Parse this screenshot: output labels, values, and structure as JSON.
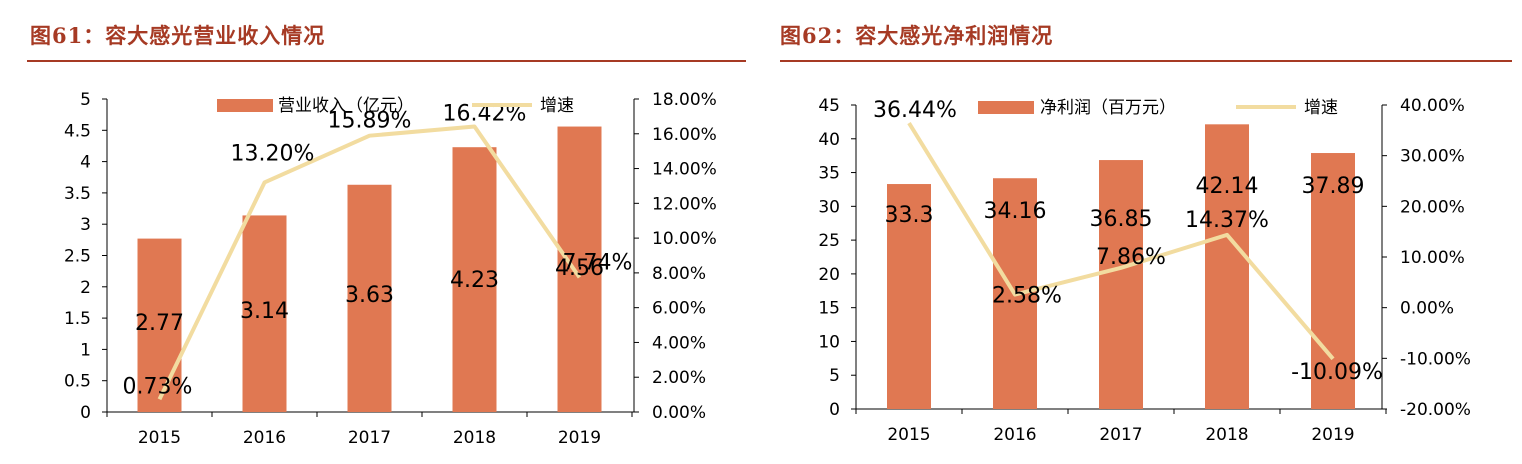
{
  "charts": [
    {
      "id": "revenue",
      "figure_title": "图61：容大感光营业收入情况",
      "bar_color": "#e07852",
      "line_color": "#f2dca0",
      "chart_data": {
        "type": "bar",
        "categories": [
          "2015",
          "2016",
          "2017",
          "2018",
          "2019"
        ],
        "series": [
          {
            "name": "营业收入（亿元）",
            "type": "bar",
            "axis": "left",
            "values": [
              2.77,
              3.14,
              3.63,
              4.23,
              4.56
            ],
            "labels": [
              "2.77",
              "3.14",
              "3.63",
              "4.23",
              "4.56"
            ]
          },
          {
            "name": "增速",
            "type": "line",
            "axis": "right",
            "values": [
              0.73,
              13.2,
              15.89,
              16.42,
              7.74
            ],
            "labels": [
              "0.73%",
              "13.20%",
              "15.89%",
              "16.42%",
              "7.74%"
            ]
          }
        ],
        "y_left": {
          "min": 0,
          "max": 5,
          "ticks": [
            "0",
            "0.5",
            "1",
            "1.5",
            "2",
            "2.5",
            "3",
            "3.5",
            "4",
            "4.5",
            "5"
          ]
        },
        "y_right": {
          "min": 0,
          "max": 18,
          "ticks": [
            "0.00%",
            "2.00%",
            "4.00%",
            "6.00%",
            "8.00%",
            "10.00%",
            "12.00%",
            "14.00%",
            "16.00%",
            "18.00%"
          ]
        },
        "legend_position": "top-center",
        "grid": false
      }
    },
    {
      "id": "profit",
      "figure_title": "图62：容大感光净利润情况",
      "bar_color": "#e07852",
      "line_color": "#f2dca0",
      "chart_data": {
        "type": "bar",
        "categories": [
          "2015",
          "2016",
          "2017",
          "2018",
          "2019"
        ],
        "series": [
          {
            "name": "净利润（百万元）",
            "type": "bar",
            "axis": "left",
            "values": [
              33.3,
              34.16,
              36.85,
              42.14,
              37.89
            ],
            "labels": [
              "33.3",
              "34.16",
              "36.85",
              "42.14",
              "37.89"
            ]
          },
          {
            "name": "增速",
            "type": "line",
            "axis": "right",
            "values": [
              36.44,
              2.58,
              7.86,
              14.37,
              -10.09
            ],
            "labels": [
              "36.44%",
              "2.58%",
              "7.86%",
              "14.37%",
              "-10.09%"
            ]
          }
        ],
        "y_left": {
          "min": 0,
          "max": 45,
          "ticks": [
            "0",
            "5",
            "10",
            "15",
            "20",
            "25",
            "30",
            "35",
            "40",
            "45"
          ]
        },
        "y_right": {
          "min": -20,
          "max": 40,
          "ticks": [
            "-20.00%",
            "-10.00%",
            "0.00%",
            "10.00%",
            "20.00%",
            "30.00%",
            "40.00%"
          ]
        },
        "legend_position": "top-center",
        "grid": false
      }
    }
  ]
}
